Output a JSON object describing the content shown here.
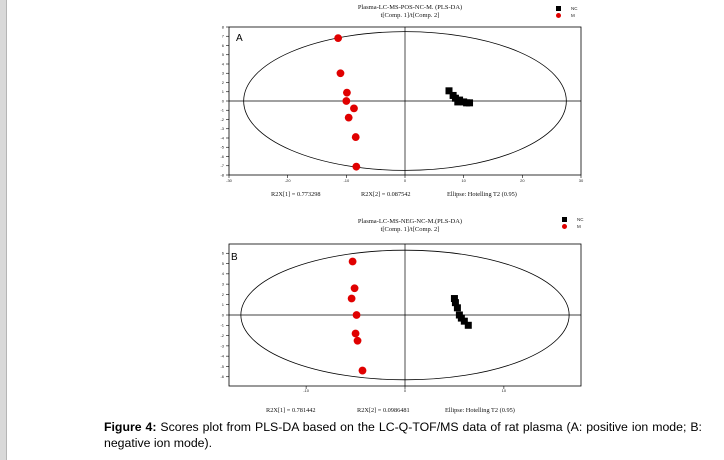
{
  "figure": {
    "caption_label": "Figure 4:",
    "caption_text": " Scores plot from PLS-DA based on the LC-Q-TOF/MS data of rat plasma (A: positive ion mode; B: negative ion mode)."
  },
  "colors": {
    "nc": "#000000",
    "m": "#e00000",
    "axis": "#000000"
  },
  "panels": [
    {
      "letter": "A",
      "title_line1": "Plasma-LC-MS-POS-NC-M. (PLS-DA)",
      "title_line2": "t[Comp. 1]/t[Comp. 2]",
      "legend": [
        "NC",
        "M"
      ],
      "stat_r2x1": "R2X[1] = 0.773298",
      "stat_r2x2": "R2X[2] = 0.087542",
      "stat_ellipse": "Ellipse: Hotelling T2 (0.95)",
      "x_ticks": [
        "-30",
        "-20",
        "-10",
        "0",
        "10",
        "20",
        "30"
      ],
      "y_ticks": [
        "8",
        "7",
        "6",
        "5",
        "4",
        "3",
        "2",
        "1",
        "0",
        "-1",
        "-2",
        "-3",
        "-4",
        "-5",
        "-6",
        "-7",
        "-8"
      ],
      "chart_data": {
        "type": "scatter",
        "xlim": [
          -30,
          30
        ],
        "ylim": [
          -8,
          8
        ],
        "ellipse": {
          "rx": 27.5,
          "ry": 7.5
        },
        "series": [
          {
            "name": "NC",
            "marker": "square",
            "points": [
              [
                7.5,
                1.1
              ],
              [
                8.2,
                0.6
              ],
              [
                8.6,
                0.3
              ],
              [
                9.3,
                0.1
              ],
              [
                10.0,
                -0.1
              ],
              [
                10.5,
                -0.2
              ],
              [
                11.0,
                -0.2
              ],
              [
                9.0,
                -0.1
              ]
            ]
          },
          {
            "name": "M",
            "marker": "circle",
            "points": [
              [
                -11.4,
                6.8
              ],
              [
                -11.0,
                3.0
              ],
              [
                -9.9,
                0.9
              ],
              [
                -10.0,
                0.0
              ],
              [
                -8.7,
                -0.8
              ],
              [
                -9.6,
                -1.8
              ],
              [
                -8.4,
                -3.9
              ],
              [
                -8.3,
                -7.1
              ]
            ]
          }
        ]
      }
    },
    {
      "letter": "B",
      "title_line1": "Plasma-LC-MS-NEG-NC-M.(PLS-DA)",
      "title_line2": "t[Comp. 1]/t[Comp. 2]",
      "legend": [
        "NC",
        "M"
      ],
      "stat_r2x1": "R2X[1] = 0.781442",
      "stat_r2x2": "R2X[2] = 0.0986481",
      "stat_ellipse": "Ellipse: Hotelling T2 (0.95)",
      "x_ticks": [
        "-10",
        "0",
        "10"
      ],
      "y_ticks": [
        "6",
        "5",
        "4",
        "3",
        "2",
        "1",
        "0",
        "-1",
        "-2",
        "-3",
        "-4",
        "-5",
        "-6"
      ],
      "chart_data": {
        "type": "scatter",
        "xlim": [
          -17.8,
          17.8
        ],
        "ylim": [
          -6.9,
          6.9
        ],
        "ellipse": {
          "rx": 16.6,
          "ry": 6.3
        },
        "series": [
          {
            "name": "NC",
            "marker": "square",
            "points": [
              [
                5.0,
                1.6
              ],
              [
                5.1,
                1.2
              ],
              [
                5.3,
                0.7
              ],
              [
                5.5,
                0.0
              ],
              [
                5.7,
                -0.3
              ],
              [
                6.0,
                -0.6
              ],
              [
                6.4,
                -1.0
              ]
            ]
          },
          {
            "name": "M",
            "marker": "circle",
            "points": [
              [
                -5.3,
                5.2
              ],
              [
                -5.1,
                2.6
              ],
              [
                -5.4,
                1.6
              ],
              [
                -4.9,
                0.0
              ],
              [
                -5.0,
                -1.8
              ],
              [
                -4.8,
                -2.5
              ],
              [
                -4.3,
                -5.4
              ]
            ]
          }
        ]
      }
    }
  ]
}
